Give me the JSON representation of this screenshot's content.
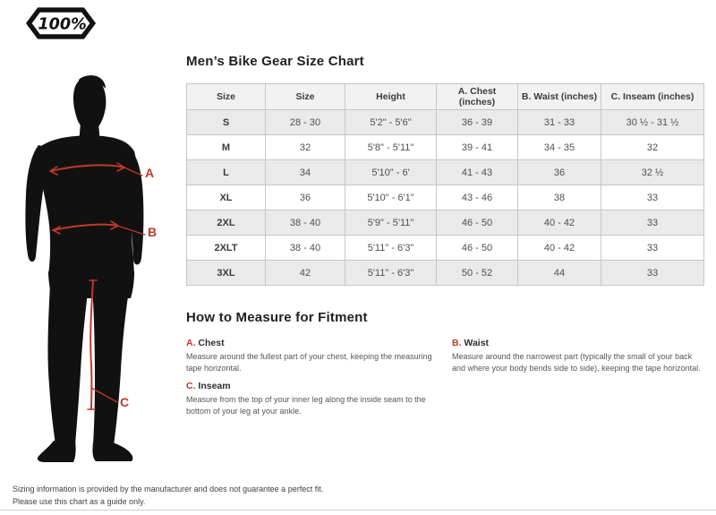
{
  "logo": {
    "text": "100%"
  },
  "figure": {
    "label_a": "A",
    "label_b": "B",
    "label_c": "C"
  },
  "size_chart": {
    "title": "Men’s Bike Gear Size Chart",
    "columns": [
      "Size",
      "Size",
      "Height",
      "A. Chest (inches)",
      "B. Waist (inches)",
      "C. Inseam (inches)"
    ],
    "rows": [
      [
        "S",
        "28 - 30",
        "5'2\" - 5'6\"",
        "36 - 39",
        "31 - 33",
        "30 ½ - 31 ½"
      ],
      [
        "M",
        "32",
        "5'8\" - 5'11\"",
        "39 - 41",
        "34 - 35",
        "32"
      ],
      [
        "L",
        "34",
        "5'10\" - 6'",
        "41 - 43",
        "36",
        "32 ½"
      ],
      [
        "XL",
        "36",
        "5'10\" - 6'1\"",
        "43 - 46",
        "38",
        "33"
      ],
      [
        "2XL",
        "38 - 40",
        "5'9\" - 5'11\"",
        "46 - 50",
        "40 - 42",
        "33"
      ],
      [
        "2XLT",
        "38 - 40",
        "5'11\" - 6'3\"",
        "46 - 50",
        "40 - 42",
        "33"
      ],
      [
        "3XL",
        "42",
        "5'11\" - 6'3\"",
        "50 - 52",
        "44",
        "33"
      ]
    ]
  },
  "how_to_measure": {
    "title": "How to Measure for Fitment",
    "items": [
      {
        "letter": "A.",
        "name": "Chest",
        "description": "Measure around the fullest part of your chest, keeping the measuring tape horizontal."
      },
      {
        "letter": "B.",
        "name": "Waist",
        "description": "Measure around the narrowest part (typically the small of your back and where your body bends side to side), keeping the tape horizontal."
      },
      {
        "letter": "C.",
        "name": "Inseam",
        "description": "Measure from the top of your inner leg along the inside seam to the bottom of your leg at your ankle."
      }
    ]
  },
  "footer": {
    "line1": "Sizing information is provided by the manufacturer and does not guarantee a perfect fit.",
    "line2": "Please use this chart as a guide only."
  },
  "colors": {
    "accent_red": "#c0392b",
    "silhouette_black": "#111111",
    "table_border": "#c6c6c6",
    "header_bg": "#f1f1f1",
    "stripe_bg": "#eaeaea"
  }
}
